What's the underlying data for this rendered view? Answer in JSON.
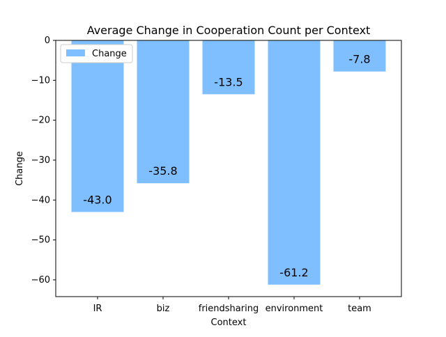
{
  "chart_data": {
    "type": "bar",
    "title": "Average Change in Cooperation Count per Context",
    "xlabel": "Context",
    "ylabel": "Change",
    "categories": [
      "IR",
      "biz",
      "friendsharing",
      "environment",
      "team"
    ],
    "series": [
      {
        "name": "Change",
        "values": [
          -43.0,
          -35.8,
          -13.5,
          -61.2,
          -7.8
        ],
        "color": "#80bfff"
      }
    ],
    "data_labels": [
      "-43.0",
      "-35.8",
      "-13.5",
      "-61.2",
      "-7.8"
    ],
    "ylim": [
      -64.2,
      0
    ],
    "yticks": [
      0,
      -10,
      -20,
      -30,
      -40,
      -50,
      -60
    ],
    "ytick_labels": [
      "0",
      "−10",
      "−20",
      "−30",
      "−40",
      "−50",
      "−60"
    ],
    "grid": false,
    "legend_position": "top-left"
  }
}
